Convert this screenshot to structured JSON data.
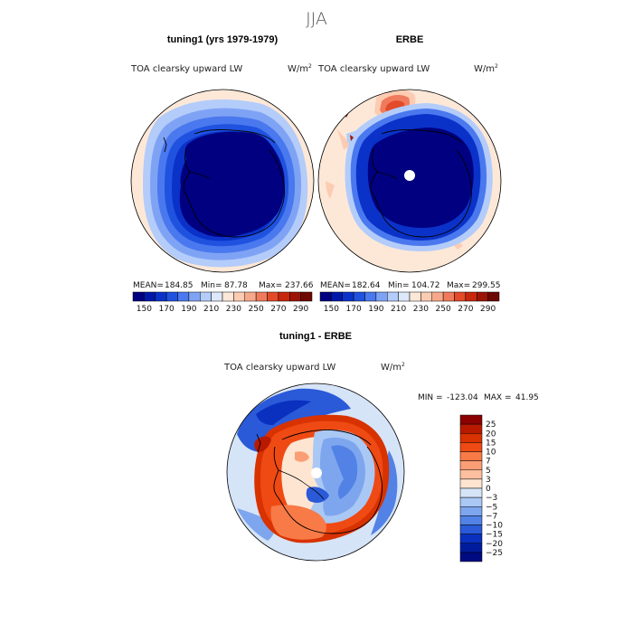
{
  "figure": {
    "title": "JJA"
  },
  "panels": [
    {
      "title": "tuning1 (yrs 1979-1979)",
      "variable": "TOA clearsky upward LW",
      "units_base": "W/m",
      "units_exp": "2",
      "stats": {
        "mean_label": "MEAN=",
        "mean": "184.85",
        "min_label": "Min=",
        "min": "87.78",
        "max_label": "Max=",
        "max": "237.66"
      }
    },
    {
      "title": "ERBE",
      "variable": "TOA clearsky upward LW",
      "units_base": "W/m",
      "units_exp": "2",
      "stats": {
        "mean_label": "MEAN=",
        "mean": "182.64",
        "min_label": "Min=",
        "min": "104.72",
        "max_label": "Max=",
        "max": "299.55"
      }
    },
    {
      "title": "tuning1 - ERBE",
      "variable": "TOA clearsky upward LW",
      "units_base": "W/m",
      "units_exp": "2",
      "stats": {
        "min_label": "MIN =",
        "min": "-123.04",
        "max_label": "MAX =",
        "max": "41.95"
      }
    }
  ],
  "colorbar_top": {
    "labels": [
      "150",
      "170",
      "190",
      "210",
      "230",
      "250",
      "270",
      "290"
    ],
    "colors": [
      "#000080",
      "#0018a8",
      "#0a32c8",
      "#2052e0",
      "#4a78ee",
      "#7fa3f4",
      "#b3ccfa",
      "#dde8fb",
      "#fde8d8",
      "#fcccb2",
      "#f8a88a",
      "#f07a5c",
      "#e24a2a",
      "#c8260e",
      "#9c1406",
      "#6e0802"
    ]
  },
  "colorbar_diff": {
    "labels": [
      "25",
      "20",
      "15",
      "10",
      "7",
      "5",
      "3",
      "0",
      "−3",
      "−5",
      "−7",
      "−10",
      "−15",
      "−20",
      "−25"
    ],
    "colors": [
      "#8b0000",
      "#b81a00",
      "#d83200",
      "#ef4a14",
      "#f87a46",
      "#fb9e76",
      "#fcc0a0",
      "#fde5d2",
      "#d6e4f8",
      "#aac8f4",
      "#7ea6ee",
      "#5282e6",
      "#2a5ad8",
      "#0a30c0",
      "#001c9c",
      "#000a80"
    ]
  },
  "chart_data": [
    {
      "type": "heatmap",
      "title": "tuning1 (yrs 1979-1979)",
      "projection": "south polar stereographic",
      "season": "JJA",
      "variable": "TOA clearsky upward LW",
      "units": "W/m2",
      "mean": 184.85,
      "min": 87.78,
      "max": 237.66,
      "levels": [
        150,
        160,
        170,
        180,
        190,
        200,
        210,
        220,
        230,
        240,
        250,
        260,
        270,
        280,
        290
      ]
    },
    {
      "type": "heatmap",
      "title": "ERBE",
      "projection": "south polar stereographic",
      "season": "JJA",
      "variable": "TOA clearsky upward LW",
      "units": "W/m2",
      "mean": 182.64,
      "min": 104.72,
      "max": 299.55,
      "levels": [
        150,
        160,
        170,
        180,
        190,
        200,
        210,
        220,
        230,
        240,
        250,
        260,
        270,
        280,
        290
      ]
    },
    {
      "type": "heatmap",
      "title": "tuning1 - ERBE",
      "projection": "south polar stereographic",
      "season": "JJA",
      "variable": "TOA clearsky upward LW",
      "units": "W/m2",
      "min": -123.04,
      "max": 41.95,
      "levels": [
        -25,
        -20,
        -15,
        -10,
        -7,
        -5,
        -3,
        0,
        3,
        5,
        7,
        10,
        15,
        20,
        25
      ]
    }
  ]
}
